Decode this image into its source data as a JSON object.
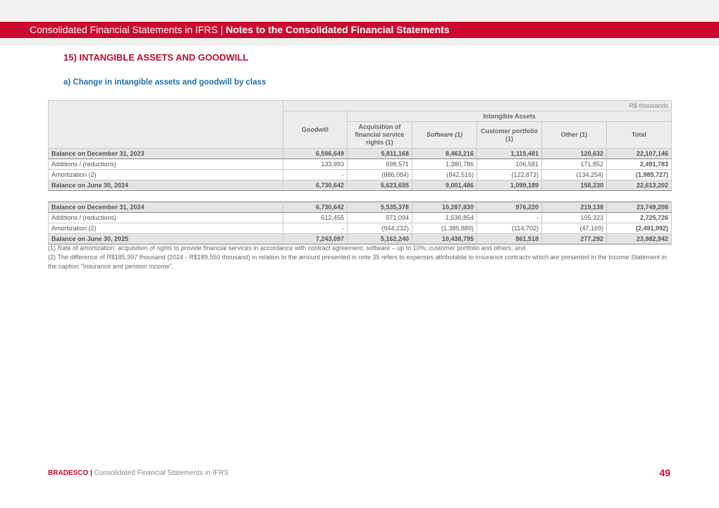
{
  "header": {
    "title_part1": "Consolidated Financial Statements in IFRS | ",
    "title_part2": "Notes to the Consolidated Financial Statements"
  },
  "section": {
    "heading": "15)  INTANGIBLE ASSETS AND GOODWILL",
    "subheading": "a)   Change in intangible assets and goodwill by class"
  },
  "table": {
    "units": "R$ thousands",
    "group_header": "Intangible Assets",
    "columns": [
      "Goodwill",
      "Acquisition of financial service rights (1)",
      "Software (1)",
      "Customer portfolio (1)",
      "Other (1)",
      "Total"
    ],
    "rows": [
      {
        "label": "Balance on December 31, 2023",
        "values": [
          "6,596,649",
          "5,811,168",
          "8,463,216",
          "1,115,481",
          "120,632",
          "22,107,146"
        ]
      },
      {
        "label": "Additions / (reductions)",
        "values": [
          "133,993",
          "698,571",
          "1,380,786",
          "106,581",
          "171,852",
          "2,491,783"
        ]
      },
      {
        "label": "Amortization (2)",
        "values": [
          "-",
          "(886,084)",
          "(842,516)",
          "(122,873)",
          "(134,254)",
          "(1,985,727)"
        ]
      },
      {
        "label": "Balance on June 30, 2024",
        "values": [
          "6,730,642",
          "5,623,655",
          "9,001,486",
          "1,099,189",
          "158,230",
          "22,613,202"
        ]
      },
      {
        "label": "Balance on December 31, 2024",
        "values": [
          "6,730,642",
          "5,535,378",
          "10,287,830",
          "976,220",
          "219,138",
          "23,749,208"
        ]
      },
      {
        "label": "Additions / (reductions)",
        "values": [
          "512,455",
          "571,094",
          "1,536,854",
          "-",
          "105,323",
          "2,725,726"
        ]
      },
      {
        "label": "Amortization (2)",
        "values": [
          "-",
          "(944,232)",
          "(1,385,889)",
          "(114,702)",
          "(47,169)",
          "(2,491,992)"
        ]
      },
      {
        "label": "Balance on June 30, 2025",
        "values": [
          "7,243,097",
          "5,162,240",
          "10,438,795",
          "861,518",
          "277,292",
          "23,982,942"
        ]
      }
    ]
  },
  "notes": {
    "note1": " (1) Rate of amortization: acquisition of rights to provide financial services in accordance with contract agreement; software – up to 10%; customer portfolio and others; and",
    "note2": "(2) The difference of R$185,997 thousand (2024 - R$189,550 thousand) in relation to the amount presented in note 35 refers to expenses attributable to insurance contracts which are presented in the Income Statement in the caption \"Insurance and pension income\"."
  },
  "footer": {
    "brand": "BRADESCO",
    "separator": " | ",
    "text": "Consolidated Financial Statements in IFRS",
    "page_number": "49"
  },
  "colors": {
    "brand_red": "#cc0a2f",
    "heading_red": "#b3102c",
    "subheading_blue": "#1f6fa8"
  }
}
